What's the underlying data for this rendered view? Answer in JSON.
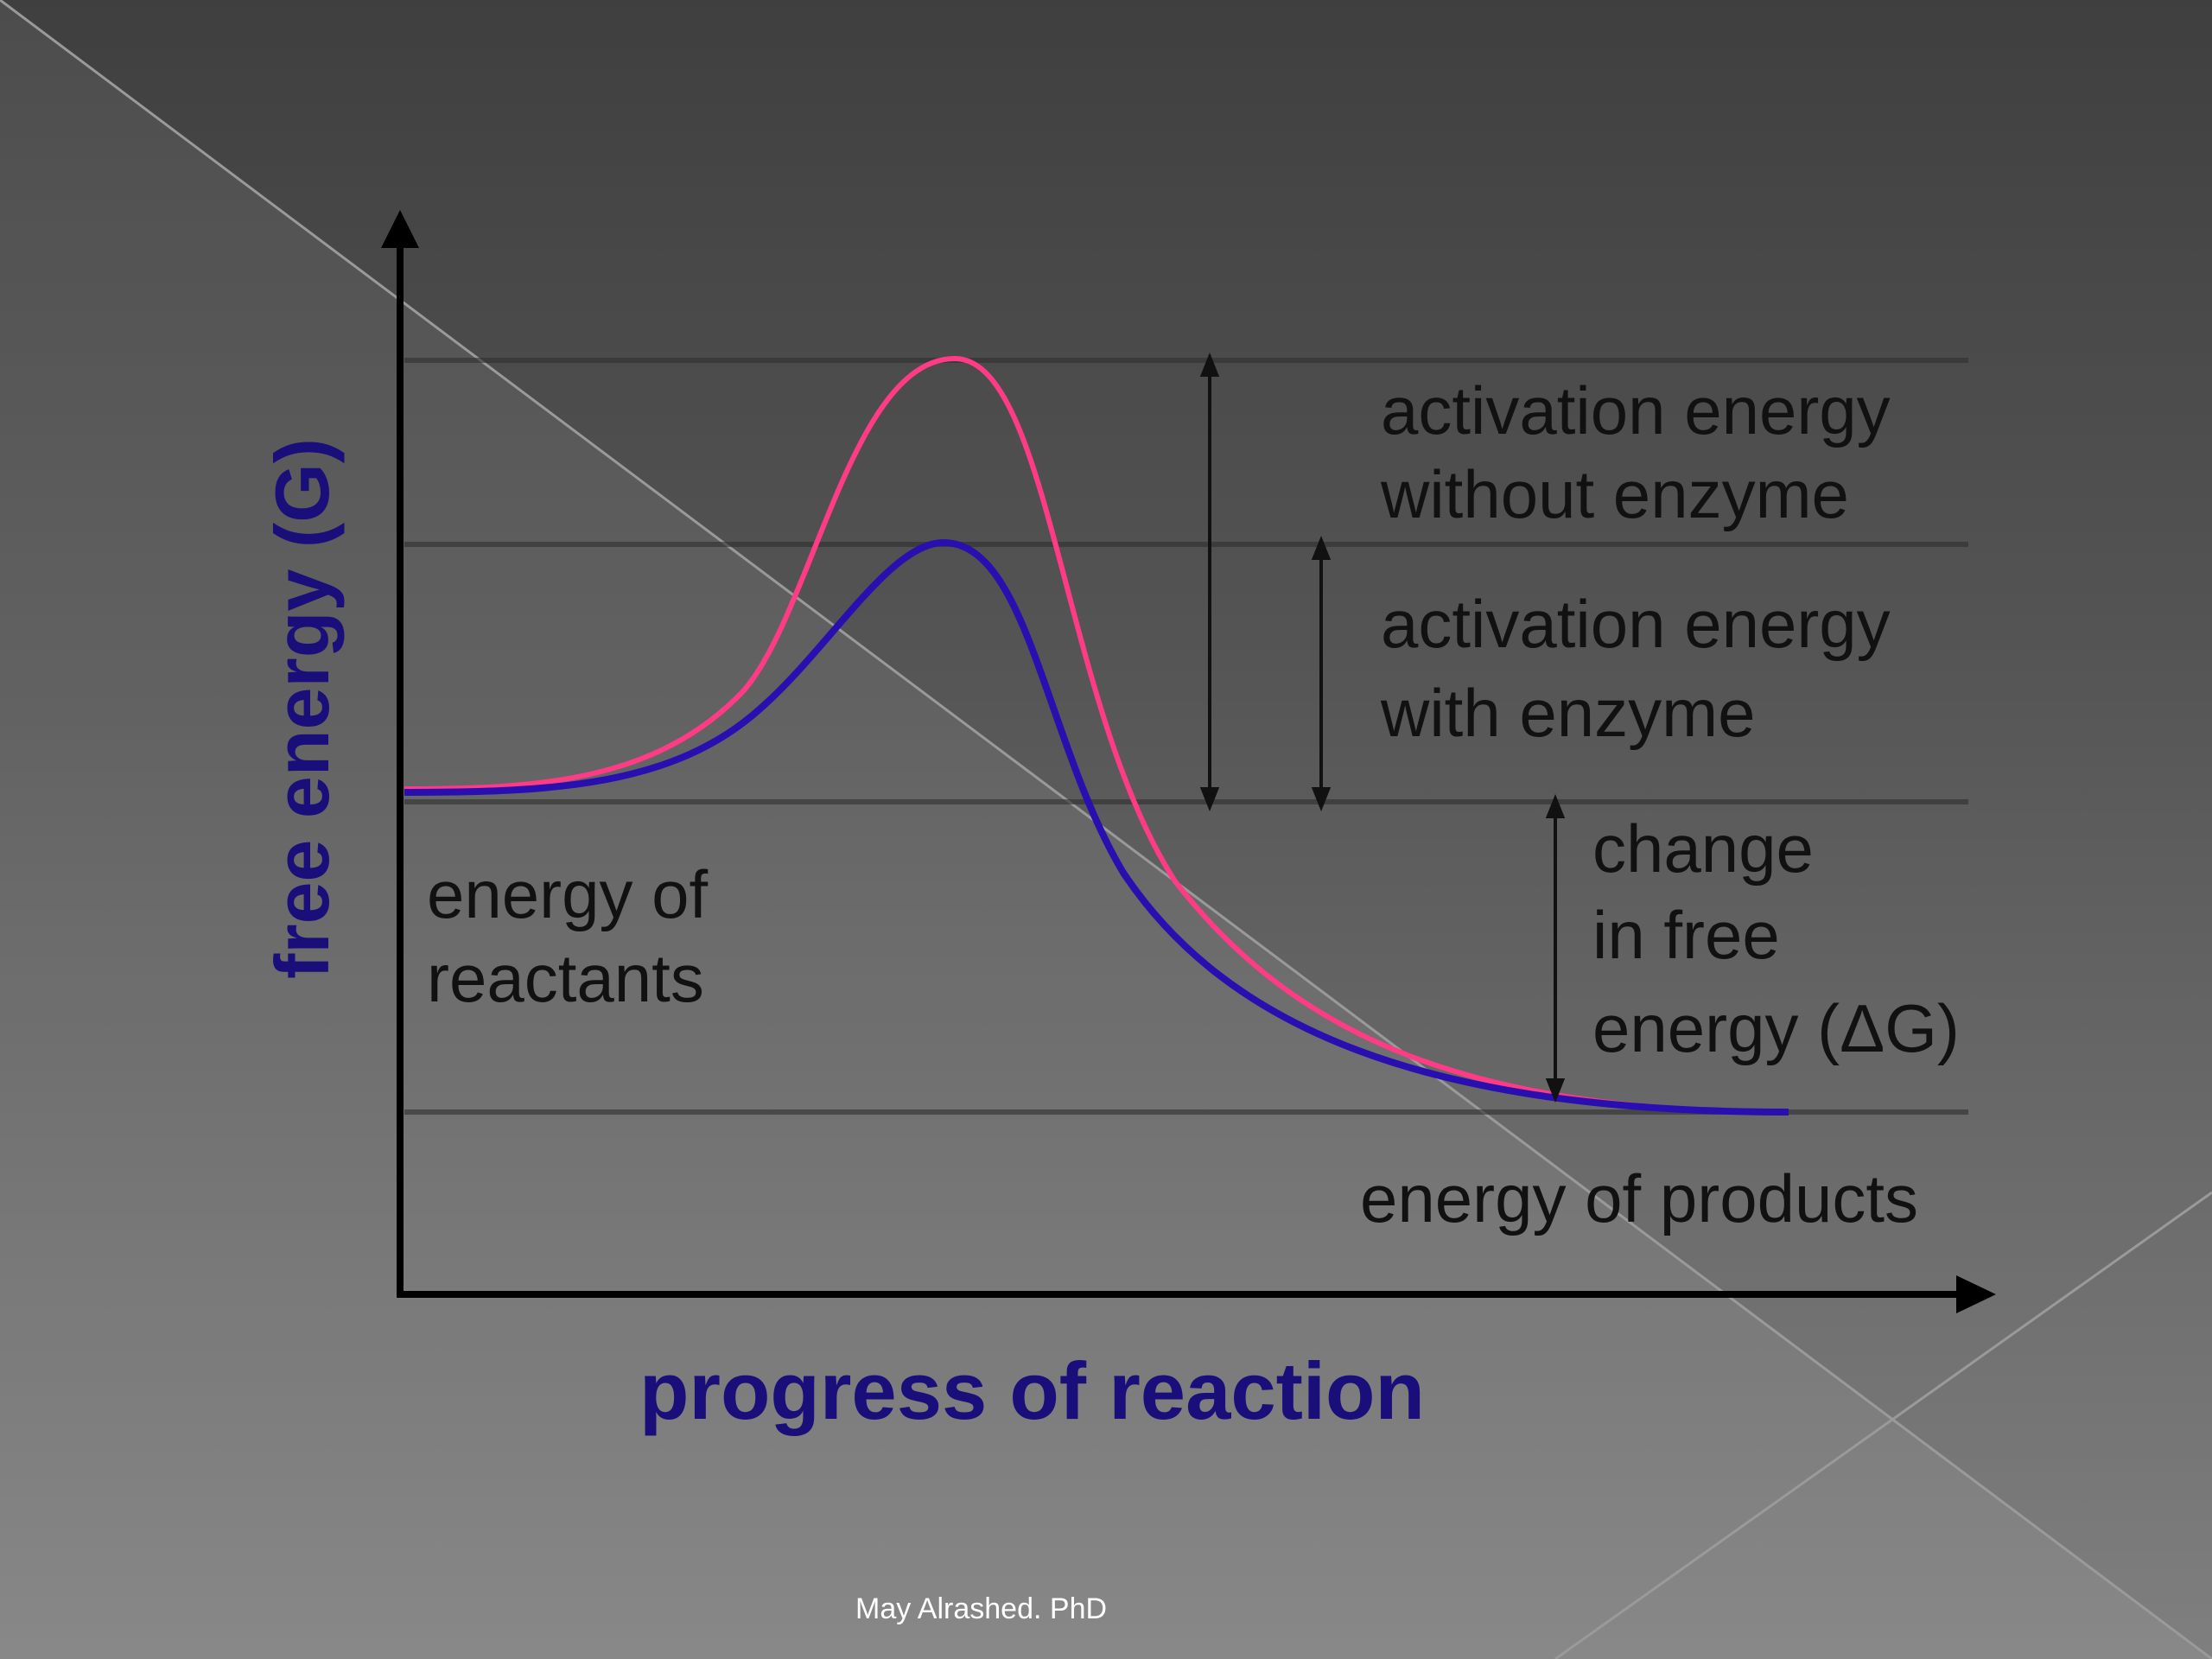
{
  "diagram": {
    "y_axis_label": "free energy (G)",
    "x_axis_label": "progress of reaction",
    "labels": {
      "activation_without": [
        "activation energy",
        "without enzyme"
      ],
      "activation_with": [
        "activation energy",
        "with enzyme"
      ],
      "delta_g": [
        "change",
        "in free",
        "energy (ΔG)"
      ],
      "reactants": [
        "energy of",
        "reactants"
      ],
      "products": "energy of products"
    },
    "curves": [
      {
        "name": "without enzyme",
        "color": "#ff3b86"
      },
      {
        "name": "with enzyme",
        "color": "#2a0fb0"
      }
    ],
    "axis_color": "#000000",
    "label_color": "#1a0f7a"
  },
  "footer": "May Alrashed. PhD"
}
